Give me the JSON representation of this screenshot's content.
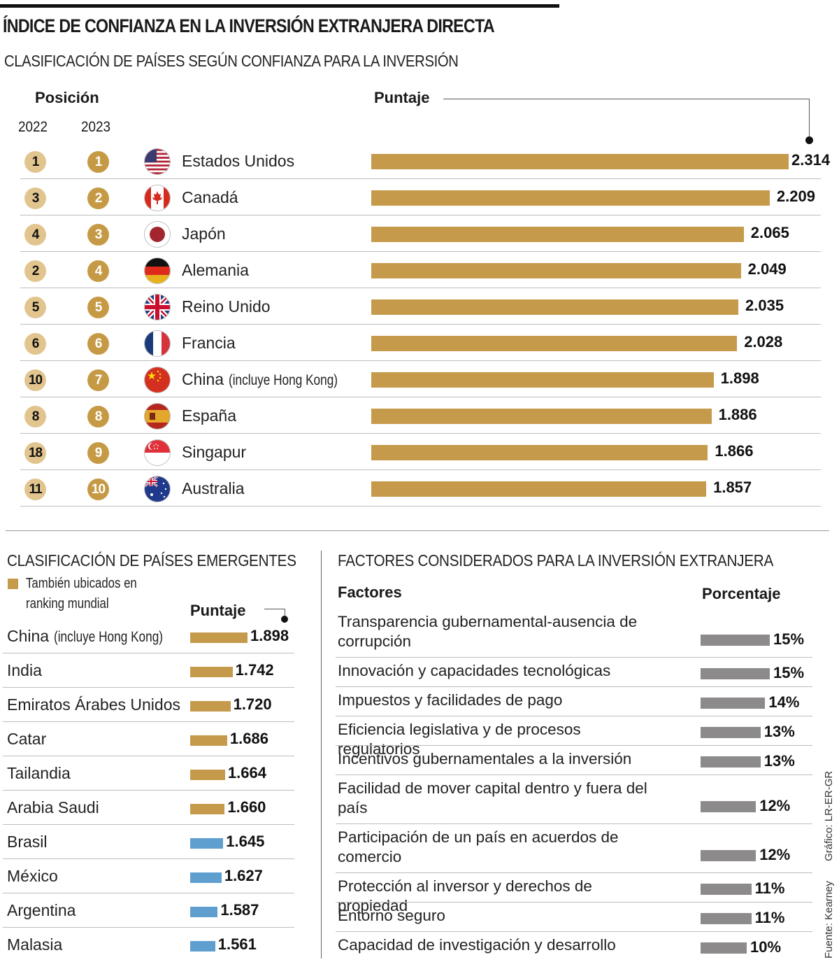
{
  "title": "ÍNDICE DE CONFIANZA EN LA INVERSIÓN EXTRANJERA DIRECTA",
  "subtitle": "CLASIFICACIÓN DE PAÍSES SEGÚN CONFIANZA PARA LA INVERSIÓN",
  "ranking": {
    "position_header": "Posición",
    "year1": "2022",
    "year2": "2023",
    "score_header": "Puntaje",
    "bar_color": "#c69a4b",
    "badge_2022_color": "#e2c58e",
    "badge_2023_color": "#c69a45",
    "rows": [
      {
        "pos2022": "1",
        "pos2023": "1",
        "flag": "flag-usa-icon",
        "country": "Estados Unidos",
        "note": "",
        "score": 2.314,
        "score_label": "2.314"
      },
      {
        "pos2022": "3",
        "pos2023": "2",
        "flag": "flag-canada-icon",
        "country": "Canadá",
        "note": "",
        "score": 2.209,
        "score_label": "2.209"
      },
      {
        "pos2022": "4",
        "pos2023": "3",
        "flag": "flag-japan-icon",
        "country": "Japón",
        "note": "",
        "score": 2.065,
        "score_label": "2.065"
      },
      {
        "pos2022": "2",
        "pos2023": "4",
        "flag": "flag-germany-icon",
        "country": "Alemania",
        "note": "",
        "score": 2.049,
        "score_label": "2.049"
      },
      {
        "pos2022": "5",
        "pos2023": "5",
        "flag": "flag-uk-icon",
        "country": "Reino Unido",
        "note": "",
        "score": 2.035,
        "score_label": "2.035"
      },
      {
        "pos2022": "6",
        "pos2023": "6",
        "flag": "flag-france-icon",
        "country": "Francia",
        "note": "",
        "score": 2.028,
        "score_label": "2.028"
      },
      {
        "pos2022": "10",
        "pos2023": "7",
        "flag": "flag-china-icon",
        "country": "China",
        "note": "(incluye Hong Kong)",
        "score": 1.898,
        "score_label": "1.898"
      },
      {
        "pos2022": "8",
        "pos2023": "8",
        "flag": "flag-spain-icon",
        "country": "España",
        "note": "",
        "score": 1.886,
        "score_label": "1.886"
      },
      {
        "pos2022": "18",
        "pos2023": "9",
        "flag": "flag-singapore-icon",
        "country": "Singapur",
        "note": "",
        "score": 1.866,
        "score_label": "1.866"
      },
      {
        "pos2022": "11",
        "pos2023": "10",
        "flag": "flag-australia-icon",
        "country": "Australia",
        "note": "",
        "score": 1.857,
        "score_label": "1.857"
      }
    ]
  },
  "emerging": {
    "title": "CLASIFICACIÓN DE PAÍSES EMERGENTES",
    "legend": "También ubicados en ranking mundial",
    "score_header": "Puntaje",
    "color_in_world_ranking": "#c69a4b",
    "color_other": "#5f9fd0",
    "rows": [
      {
        "country": "China",
        "note": "(incluye Hong Kong)",
        "score": 1.898,
        "score_label": "1.898",
        "in_world_ranking": true
      },
      {
        "country": "India",
        "note": "",
        "score": 1.742,
        "score_label": "1.742",
        "in_world_ranking": true
      },
      {
        "country": "Emiratos Árabes Unidos",
        "note": "",
        "score": 1.72,
        "score_label": "1.720",
        "in_world_ranking": true
      },
      {
        "country": "Catar",
        "note": "",
        "score": 1.686,
        "score_label": "1.686",
        "in_world_ranking": true
      },
      {
        "country": "Tailandia",
        "note": "",
        "score": 1.664,
        "score_label": "1.664",
        "in_world_ranking": true
      },
      {
        "country": "Arabia Saudi",
        "note": "",
        "score": 1.66,
        "score_label": "1.660",
        "in_world_ranking": true
      },
      {
        "country": "Brasil",
        "note": "",
        "score": 1.645,
        "score_label": "1.645",
        "in_world_ranking": false
      },
      {
        "country": "México",
        "note": "",
        "score": 1.627,
        "score_label": "1.627",
        "in_world_ranking": false
      },
      {
        "country": "Argentina",
        "note": "",
        "score": 1.587,
        "score_label": "1.587",
        "in_world_ranking": false
      },
      {
        "country": "Malasia",
        "note": "",
        "score": 1.561,
        "score_label": "1.561",
        "in_world_ranking": false
      }
    ]
  },
  "factors": {
    "title": "FACTORES CONSIDERADOS PARA LA INVERSIÓN EXTRANJERA",
    "col1": "Factores",
    "col2": "Porcentaje",
    "bar_color": "#8c8a8a",
    "rows": [
      {
        "factor": "Transparencia gubernamental-ausencia de corrupción",
        "lines": 2,
        "pct": 15,
        "pct_label": "15%"
      },
      {
        "factor": "Innovación y capacidades tecnológicas",
        "lines": 1,
        "pct": 15,
        "pct_label": "15%"
      },
      {
        "factor": "Impuestos y facilidades de pago",
        "lines": 1,
        "pct": 14,
        "pct_label": "14%"
      },
      {
        "factor": "Eficiencia legislativa y de procesos regulatorios",
        "lines": 1,
        "pct": 13,
        "pct_label": "13%"
      },
      {
        "factor": "Incentivos gubernamentales a la inversión",
        "lines": 1,
        "pct": 13,
        "pct_label": "13%"
      },
      {
        "factor": "Facilidad de mover capital dentro y fuera del país",
        "lines": 2,
        "pct": 12,
        "pct_label": "12%"
      },
      {
        "factor": "Participación de un país en acuerdos de comercio",
        "lines": 2,
        "pct": 12,
        "pct_label": "12%"
      },
      {
        "factor": "Protección al inversor y derechos de propiedad",
        "lines": 1,
        "pct": 11,
        "pct_label": "11%"
      },
      {
        "factor": "Entorno seguro",
        "lines": 1,
        "pct": 11,
        "pct_label": "11%"
      },
      {
        "factor": "Capacidad de investigación y desarrollo",
        "lines": 1,
        "pct": 10,
        "pct_label": "10%"
      }
    ]
  },
  "credits": {
    "source": "Fuente: Kearney",
    "graphic": "Gráfico: LR-ER-GR"
  },
  "chart_data": [
    {
      "type": "bar",
      "orientation": "horizontal",
      "title": "CLASIFICACIÓN DE PAÍSES SEGÚN CONFIANZA PARA LA INVERSIÓN",
      "xlabel": "Puntaje",
      "categories": [
        "Estados Unidos",
        "Canadá",
        "Japón",
        "Alemania",
        "Reino Unido",
        "Francia",
        "China (incluye Hong Kong)",
        "España",
        "Singapur",
        "Australia"
      ],
      "values": [
        2.314,
        2.209,
        2.065,
        2.049,
        2.035,
        2.028,
        1.898,
        1.886,
        1.866,
        1.857
      ],
      "rank_2022": [
        1,
        3,
        4,
        2,
        5,
        6,
        10,
        8,
        18,
        11
      ],
      "rank_2023": [
        1,
        2,
        3,
        4,
        5,
        6,
        7,
        8,
        9,
        10
      ],
      "xlim": [
        0,
        2.314
      ],
      "grid": false
    },
    {
      "type": "bar",
      "orientation": "horizontal",
      "title": "CLASIFICACIÓN DE PAÍSES EMERGENTES",
      "xlabel": "Puntaje",
      "categories": [
        "China (incluye Hong Kong)",
        "India",
        "Emiratos Árabes Unidos",
        "Catar",
        "Tailandia",
        "Arabia Saudi",
        "Brasil",
        "México",
        "Argentina",
        "Malasia"
      ],
      "values": [
        1.898,
        1.742,
        1.72,
        1.686,
        1.664,
        1.66,
        1.645,
        1.627,
        1.587,
        1.561
      ],
      "legend": [
        "También ubicados en ranking mundial"
      ],
      "grid": false
    },
    {
      "type": "bar",
      "orientation": "horizontal",
      "title": "FACTORES CONSIDERADOS PARA LA INVERSIÓN EXTRANJERA",
      "xlabel": "Porcentaje",
      "categories": [
        "Transparencia gubernamental-ausencia de corrupción",
        "Innovación y capacidades tecnológicas",
        "Impuestos y facilidades de pago",
        "Eficiencia legislativa y de procesos regulatorios",
        "Incentivos gubernamentales a la inversión",
        "Facilidad de mover capital dentro y fuera del país",
        "Participación de un país en acuerdos de comercio",
        "Protección al inversor y derechos de propiedad",
        "Entorno seguro",
        "Capacidad de investigación y desarrollo"
      ],
      "values": [
        15,
        15,
        14,
        13,
        13,
        12,
        12,
        11,
        11,
        10
      ],
      "unit": "%",
      "grid": false
    }
  ]
}
